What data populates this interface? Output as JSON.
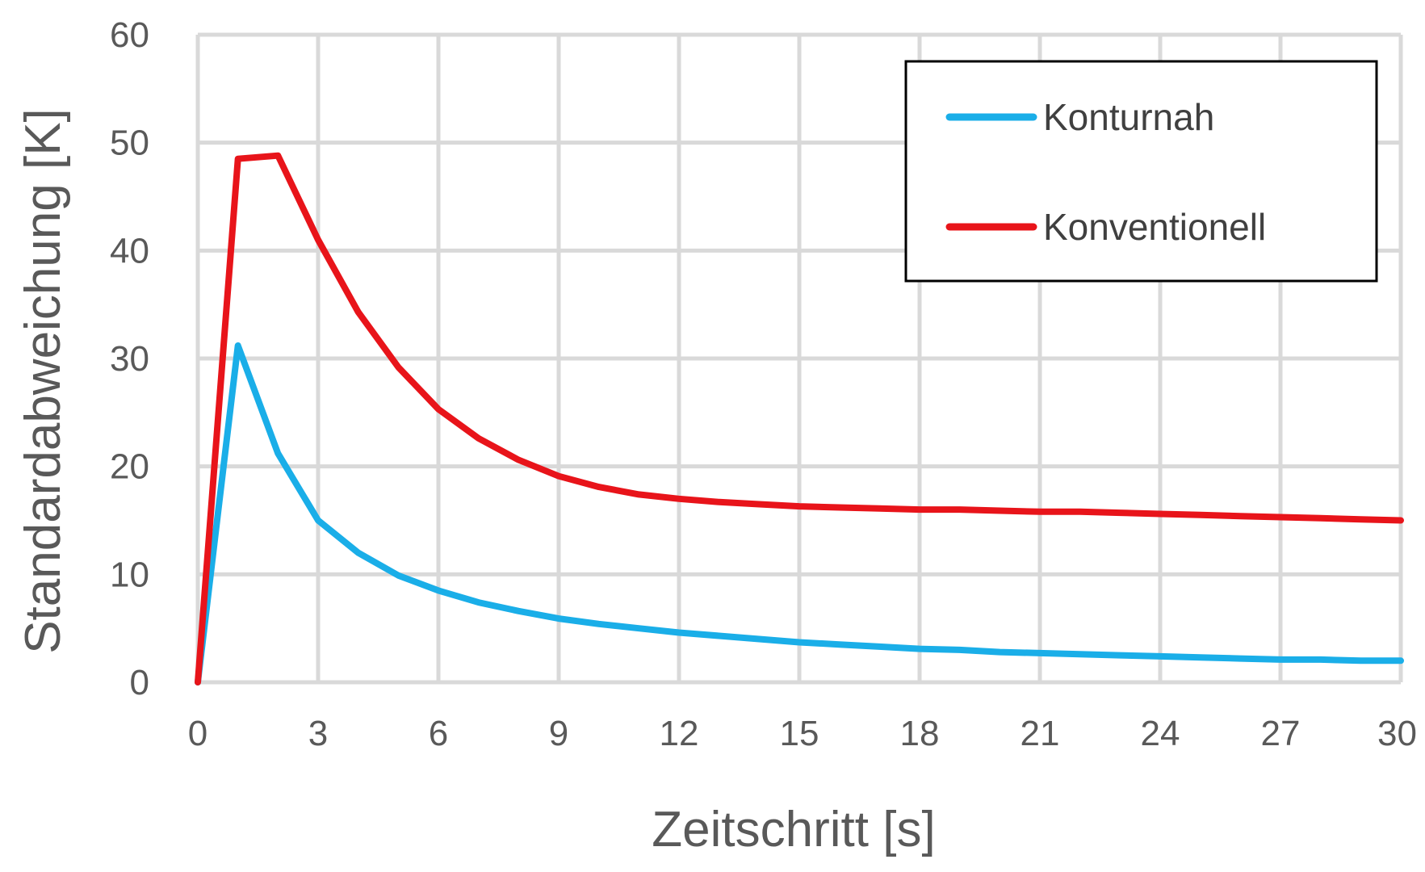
{
  "chart_data": {
    "type": "line",
    "xlabel": "Zeitschritt [s]",
    "ylabel": "Standardabweichung [K]",
    "xlim": [
      0,
      30
    ],
    "ylim": [
      0,
      60
    ],
    "x_ticks": [
      0,
      3,
      6,
      9,
      12,
      15,
      18,
      21,
      24,
      27,
      30
    ],
    "y_ticks": [
      0,
      10,
      20,
      30,
      40,
      50,
      60
    ],
    "grid": true,
    "legend_position": "top-right",
    "x": [
      0,
      1,
      2,
      3,
      4,
      5,
      6,
      7,
      8,
      9,
      10,
      11,
      12,
      13,
      14,
      15,
      16,
      17,
      18,
      19,
      20,
      21,
      22,
      23,
      24,
      25,
      26,
      27,
      28,
      29,
      30
    ],
    "series": [
      {
        "name": "Konturnah",
        "color": "#1aaee8",
        "values": [
          0,
          31.2,
          21.2,
          15.0,
          12.0,
          9.9,
          8.5,
          7.4,
          6.6,
          5.9,
          5.4,
          5.0,
          4.6,
          4.3,
          4.0,
          3.7,
          3.5,
          3.3,
          3.1,
          3.0,
          2.8,
          2.7,
          2.6,
          2.5,
          2.4,
          2.3,
          2.2,
          2.1,
          2.1,
          2.0,
          2.0
        ]
      },
      {
        "name": "Konventionell",
        "color": "#e8141a",
        "values": [
          0,
          48.5,
          48.8,
          41.0,
          34.3,
          29.2,
          25.3,
          22.6,
          20.6,
          19.1,
          18.1,
          17.4,
          17.0,
          16.7,
          16.5,
          16.3,
          16.2,
          16.1,
          16.0,
          16.0,
          15.9,
          15.8,
          15.8,
          15.7,
          15.6,
          15.5,
          15.4,
          15.3,
          15.2,
          15.1,
          15.0
        ]
      }
    ]
  }
}
